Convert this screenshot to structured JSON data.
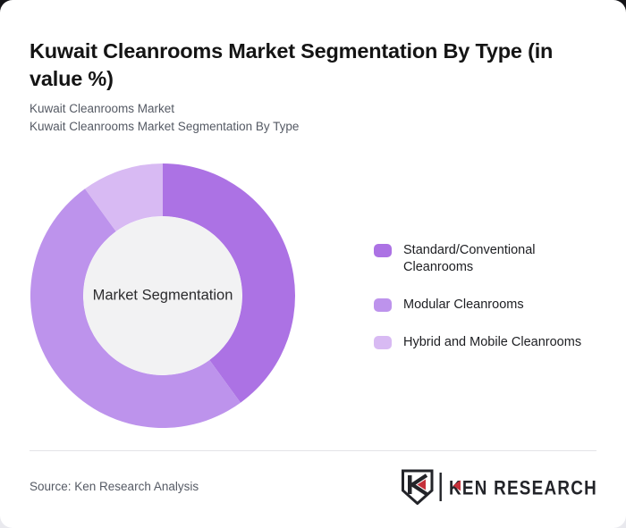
{
  "header": {
    "title": "Kuwait Cleanrooms Market Segmentation By Type (in value %)",
    "subtitle_line1": "Kuwait Cleanrooms Market",
    "subtitle_line2": "Kuwait Cleanrooms Market Segmentation By Type"
  },
  "chart_data": {
    "type": "pie",
    "variant": "donut",
    "title": "Kuwait Cleanrooms Market Segmentation By Type (in value %)",
    "center_label": "Market Segmentation",
    "categories": [
      "Standard/Conventional Cleanrooms",
      "Modular Cleanrooms",
      "Hybrid and Mobile Cleanrooms"
    ],
    "values": [
      40,
      50,
      10
    ],
    "unit": "% of value",
    "colors": [
      "#ac72e4",
      "#bd93ec",
      "#d8baf3"
    ],
    "start_angle_deg": 0,
    "direction": "clockwise",
    "inner_radius_ratio": 0.6,
    "hole_color": "#f2f2f3",
    "legend_position": "right",
    "data_labels": false
  },
  "legend": {
    "items": [
      {
        "label": "Standard/Conventional Cleanrooms",
        "color": "#ac72e4"
      },
      {
        "label": "Modular Cleanrooms",
        "color": "#bd93ec"
      },
      {
        "label": "Hybrid and Mobile Cleanrooms",
        "color": "#d8baf3"
      }
    ]
  },
  "footer": {
    "source": "Source: Ken Research Analysis",
    "logo": {
      "brand": "KEN RESEARCH",
      "accent_color": "#c5303a",
      "ink_color": "#232429"
    }
  }
}
